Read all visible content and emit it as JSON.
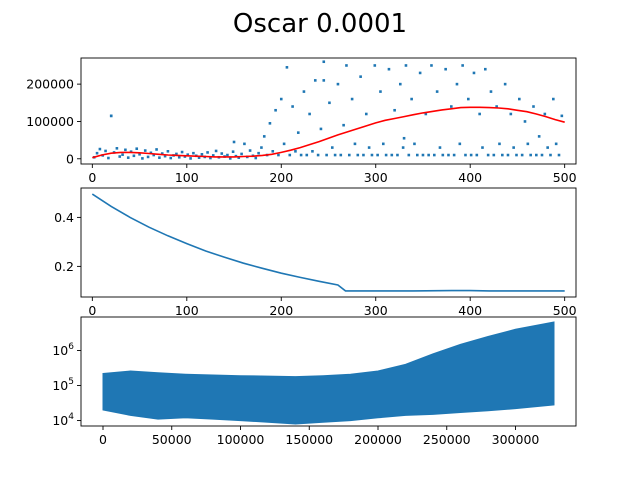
{
  "title": "Oscar 0.0001",
  "colors": {
    "scatter": "#1f77b4",
    "trend": "#ff0000",
    "line": "#1f77b4",
    "band": "#1f77b4"
  },
  "chart_data": [
    {
      "type": "scatter",
      "xlim": [
        -12,
        512
      ],
      "ylim": [
        -14000,
        270000
      ],
      "xticks": [
        0,
        100,
        200,
        300,
        400,
        500
      ],
      "xtick_labels": [
        "0",
        "100",
        "200",
        "300",
        "400",
        "500"
      ],
      "yticks": [
        0,
        100000,
        200000
      ],
      "ytick_labels": [
        "0",
        "100000",
        "200000"
      ],
      "series": [
        {
          "kind": "points",
          "x": [
            2,
            5,
            8,
            11,
            14,
            17,
            20,
            23,
            26,
            29,
            32,
            35,
            38,
            41,
            44,
            47,
            50,
            53,
            56,
            59,
            62,
            65,
            68,
            71,
            74,
            77,
            80,
            83,
            86,
            89,
            92,
            95,
            98,
            101,
            104,
            107,
            110,
            113,
            116,
            119,
            122,
            125,
            128,
            131,
            134,
            137,
            140,
            143,
            146,
            149,
            152,
            155,
            158,
            161,
            164,
            167,
            170,
            173,
            176,
            179,
            182,
            185,
            188,
            191,
            194,
            197,
            200,
            203,
            206,
            209,
            212,
            215,
            218,
            221,
            224,
            227,
            230,
            233,
            236,
            239,
            242,
            245,
            248,
            251,
            254,
            257,
            260,
            263,
            266,
            269,
            272,
            275,
            278,
            281,
            284,
            287,
            290,
            293,
            296,
            299,
            302,
            305,
            308,
            311,
            314,
            317,
            320,
            323,
            326,
            329,
            332,
            335,
            338,
            341,
            344,
            347,
            350,
            353,
            356,
            359,
            362,
            365,
            368,
            371,
            374,
            377,
            380,
            383,
            386,
            389,
            392,
            395,
            398,
            401,
            404,
            407,
            410,
            413,
            416,
            419,
            422,
            425,
            428,
            431,
            434,
            437,
            440,
            443,
            446,
            449,
            452,
            455,
            458,
            461,
            464,
            467,
            470,
            473,
            476,
            479,
            482,
            485,
            488,
            491,
            494,
            497,
            20,
            150,
            245,
            330
          ],
          "y": [
            4000,
            15000,
            26000,
            9000,
            21000,
            2000,
            115000,
            17000,
            28000,
            6000,
            11000,
            24000,
            3000,
            19000,
            8000,
            27000,
            12000,
            1000,
            22000,
            5000,
            16000,
            10000,
            25000,
            3000,
            14000,
            7000,
            20000,
            2000,
            9000,
            13000,
            4000,
            18000,
            6000,
            11000,
            1000,
            15000,
            8000,
            3000,
            12000,
            5000,
            17000,
            2000,
            9000,
            21000,
            4000,
            14000,
            6000,
            10000,
            1000,
            19000,
            7000,
            3000,
            13000,
            40000,
            5000,
            22000,
            8000,
            2000,
            15000,
            30000,
            60000,
            10000,
            95000,
            20000,
            130000,
            10000,
            160000,
            40000,
            245000,
            10000,
            140000,
            20000,
            70000,
            10000,
            180000,
            10000,
            120000,
            20000,
            210000,
            10000,
            80000,
            260000,
            10000,
            150000,
            30000,
            10000,
            200000,
            10000,
            90000,
            250000,
            10000,
            160000,
            40000,
            10000,
            220000,
            10000,
            120000,
            30000,
            10000,
            250000,
            10000,
            180000,
            40000,
            10000,
            240000,
            10000,
            130000,
            10000,
            200000,
            30000,
            250000,
            10000,
            160000,
            40000,
            10000,
            230000,
            10000,
            120000,
            10000,
            250000,
            10000,
            180000,
            30000,
            10000,
            240000,
            10000,
            140000,
            10000,
            200000,
            40000,
            250000,
            10000,
            160000,
            10000,
            230000,
            10000,
            120000,
            30000,
            240000,
            10000,
            180000,
            10000,
            140000,
            40000,
            10000,
            200000,
            10000,
            120000,
            30000,
            10000,
            160000,
            10000,
            100000,
            40000,
            10000,
            140000,
            10000,
            60000,
            10000,
            120000,
            30000,
            10000,
            160000,
            40000,
            10000,
            115000,
            115000,
            45000,
            210000,
            55000
          ],
          "name": ""
        },
        {
          "kind": "trend",
          "x": [
            0,
            10,
            20,
            30,
            40,
            50,
            60,
            70,
            80,
            90,
            100,
            110,
            120,
            130,
            140,
            150,
            160,
            170,
            180,
            190,
            200,
            210,
            220,
            230,
            240,
            250,
            260,
            270,
            280,
            290,
            300,
            310,
            320,
            330,
            340,
            350,
            360,
            370,
            380,
            390,
            400,
            410,
            420,
            430,
            440,
            450,
            460,
            470,
            480,
            490,
            500
          ],
          "y": [
            3000,
            10000,
            15000,
            17000,
            17000,
            16000,
            14000,
            12000,
            10000,
            9000,
            8000,
            7000,
            6000,
            5000,
            5000,
            5000,
            6000,
            7000,
            9000,
            12000,
            17000,
            23000,
            30000,
            38000,
            46000,
            55000,
            64000,
            72000,
            80000,
            88000,
            96000,
            103000,
            108000,
            113000,
            118000,
            123000,
            127000,
            131000,
            134000,
            137000,
            138000,
            138000,
            137000,
            136000,
            134000,
            130000,
            126000,
            120000,
            113000,
            105000,
            98000
          ],
          "name": ""
        }
      ]
    },
    {
      "type": "line",
      "xlim": [
        -12,
        512
      ],
      "ylim": [
        0.075,
        0.52
      ],
      "xticks": [
        0,
        100,
        200,
        300,
        400,
        500
      ],
      "xtick_labels": [
        "0",
        "100",
        "200",
        "300",
        "400",
        "500"
      ],
      "yticks": [
        0.2,
        0.4
      ],
      "ytick_labels": [
        "0.2",
        "0.4"
      ],
      "series": [
        {
          "x": [
            0,
            20,
            40,
            60,
            80,
            100,
            120,
            140,
            160,
            180,
            200,
            220,
            240,
            260,
            268,
            300,
            340,
            380,
            400,
            420,
            460,
            500
          ],
          "y": [
            0.495,
            0.445,
            0.4,
            0.36,
            0.325,
            0.293,
            0.263,
            0.237,
            0.213,
            0.192,
            0.172,
            0.155,
            0.139,
            0.124,
            0.1,
            0.1,
            0.1,
            0.101,
            0.101,
            0.1,
            0.1,
            0.1
          ],
          "name": ""
        }
      ]
    },
    {
      "type": "area",
      "scale": "log",
      "xlim": [
        -16000,
        344000
      ],
      "ylim": [
        7000,
        9000000
      ],
      "xticks": [
        0,
        50000,
        100000,
        150000,
        200000,
        250000,
        300000
      ],
      "xtick_labels": [
        "0",
        "50000",
        "100000",
        "150000",
        "200000",
        "250000",
        "300000"
      ],
      "yticks": [
        10000,
        100000,
        1000000
      ],
      "ytick_labels": [
        "10^4",
        "10^5",
        "10^6"
      ],
      "series": [
        {
          "name": "",
          "x": [
            0,
            20000,
            40000,
            60000,
            80000,
            100000,
            120000,
            140000,
            160000,
            180000,
            200000,
            220000,
            240000,
            260000,
            280000,
            300000,
            328000
          ],
          "upper": [
            220000,
            260000,
            230000,
            210000,
            200000,
            190000,
            185000,
            180000,
            190000,
            210000,
            260000,
            400000,
            800000,
            1500000,
            2500000,
            4000000,
            6500000
          ],
          "lower": [
            20000,
            14000,
            11000,
            12000,
            11000,
            10000,
            9000,
            8000,
            9000,
            10000,
            12000,
            14000,
            15000,
            17000,
            19000,
            22000,
            28000
          ]
        }
      ]
    }
  ]
}
